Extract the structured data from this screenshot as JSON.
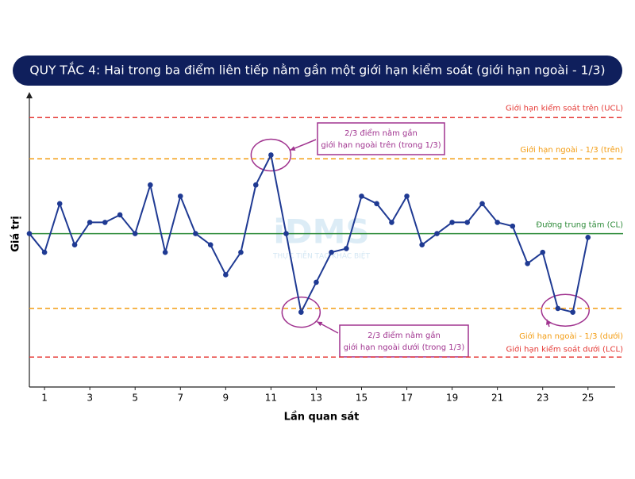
{
  "chart_data": {
    "type": "line",
    "title": "QUY TẮC 4: Hai trong ba điểm liên tiếp nằm gần một giới hạn kiểm soát (giới hạn ngoài - 1/3)",
    "xlabel": "Lần quan sát",
    "ylabel": "Giá trị",
    "watermark": [
      "iDMS",
      "THỰC TIỄN TẠO KHÁC BIỆT"
    ],
    "x": [
      0.33,
      1,
      1.67,
      2.33,
      3,
      3.67,
      4.33,
      5,
      5.67,
      6.33,
      7,
      7.67,
      8.33,
      9,
      9.67,
      10.33,
      11,
      11.67,
      12.33,
      13,
      13.67,
      14.33,
      15,
      15.67,
      16.33,
      17,
      17.67,
      18.33,
      19,
      19.67,
      20.33,
      21,
      21.67,
      22.33,
      23,
      23.67,
      24.33,
      25
    ],
    "series": [
      {
        "name": "Giá trị",
        "color": "#1f3a93",
        "values": [
          0,
          -0.5,
          0.8,
          -0.3,
          0.3,
          0.3,
          0.5,
          0,
          1.3,
          -0.5,
          1,
          0,
          -0.3,
          -1.1,
          -0.5,
          1.3,
          2.1,
          0,
          -2.1,
          -1.3,
          -0.5,
          -0.4,
          1,
          0.8,
          0.3,
          1,
          -0.3,
          0,
          0.3,
          0.3,
          0.8,
          0.3,
          0.2,
          -0.8,
          -0.5,
          -2,
          -2.1,
          -0.1
        ]
      }
    ],
    "reference_lines": [
      {
        "label": "Giới hạn kiểm soát trên (UCL)",
        "value": 3.1,
        "color": "#e53935",
        "style": "dashed"
      },
      {
        "label": "Giới hạn ngoài - 1/3 (trên)",
        "value": 2,
        "color": "#f39c12",
        "style": "dashed"
      },
      {
        "label": "Đường trung tâm (CL)",
        "value": 0,
        "color": "#2e8b3a",
        "style": "solid"
      },
      {
        "label": "Giới hạn ngoài - 1/3 (dưới)",
        "value": -2,
        "color": "#f39c12",
        "style": "dashed"
      },
      {
        "label": "Giới hạn kiểm soát dưới (LCL)",
        "value": -3.3,
        "color": "#e53935",
        "style": "dashed"
      }
    ],
    "annotations": [
      {
        "text": [
          "2/3 điểm nằm gần",
          "giới hạn ngoài trên (trong 1/3)"
        ]
      },
      {
        "text": [
          "2/3 điểm nằm gần",
          "giới hạn ngoài dưới (trong 1/3)"
        ]
      }
    ],
    "xlim": [
      0.33,
      26.2
    ],
    "ylim": [
      -4.1,
      3.7
    ],
    "xticks": [
      1,
      3,
      5,
      7,
      9,
      11,
      13,
      15,
      17,
      19,
      21,
      23,
      25
    ]
  }
}
